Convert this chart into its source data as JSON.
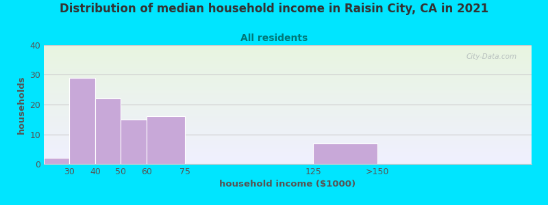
{
  "title": "Distribution of median household income in Raisin City, CA in 2021",
  "subtitle": "All residents",
  "xlabel": "household income ($1000)",
  "ylabel": "households",
  "title_fontsize": 12,
  "subtitle_fontsize": 10,
  "label_fontsize": 9.5,
  "tick_fontsize": 9,
  "bar_color": "#c8a8d8",
  "bar_edgecolor": "#ffffff",
  "ylim": [
    0,
    40
  ],
  "yticks": [
    0,
    10,
    20,
    30,
    40
  ],
  "bg_color_top": "#e8f5e0",
  "bg_color_bottom": "#f0f0ff",
  "outer_bg": "#00e5ff",
  "watermark": "City-Data.com",
  "title_color": "#333333",
  "subtitle_color": "#007777",
  "axis_label_color": "#555555",
  "tick_color": "#555555",
  "grid_color": "#cccccc",
  "bin_lefts": [
    20,
    30,
    40,
    50,
    60,
    75,
    125,
    150
  ],
  "bin_rights": [
    30,
    40,
    50,
    60,
    75,
    125,
    150,
    200
  ],
  "bin_values": [
    2,
    29,
    22,
    15,
    16,
    0,
    7,
    0
  ],
  "xtick_positions": [
    30,
    40,
    50,
    60,
    75,
    125,
    150
  ],
  "xtick_labels": [
    "30",
    "40",
    "50",
    "60",
    "75",
    "125",
    ">150"
  ],
  "xlim": [
    20,
    210
  ]
}
